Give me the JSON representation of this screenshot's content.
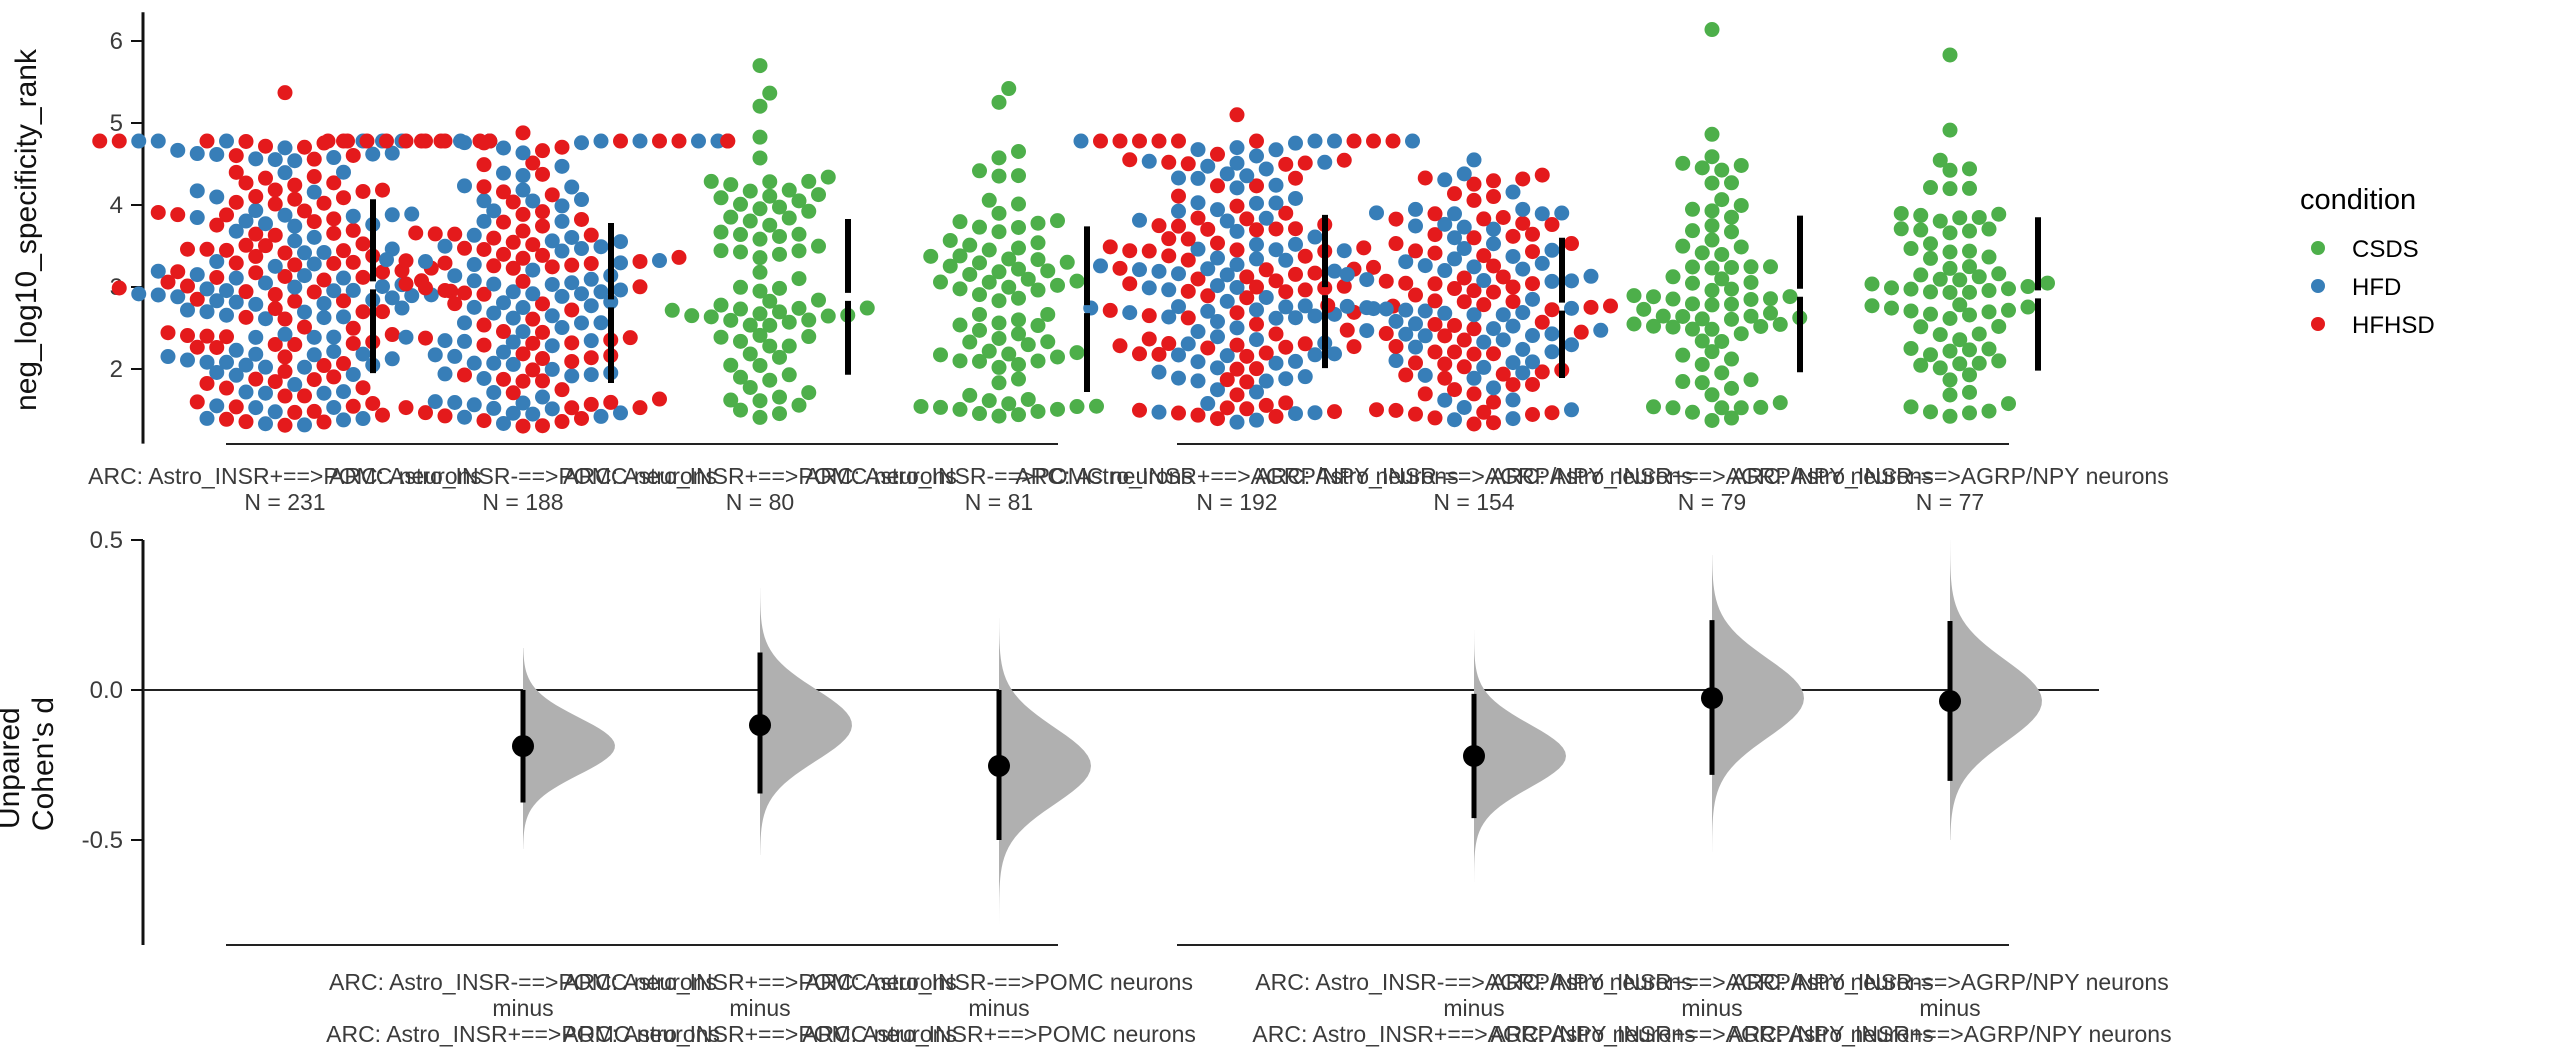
{
  "chart_data": [
    {
      "type": "scatter",
      "subtype": "swarm",
      "ylabel": "neg_log10_specificity_rank",
      "ylim": [
        1.09,
        6.35
      ],
      "yticks": [
        2,
        3,
        4,
        5,
        6
      ],
      "legend": {
        "title": "condition",
        "placement": "right",
        "entries": [
          {
            "name": "CSDS",
            "color": "#4daf4a"
          },
          {
            "name": "HFD",
            "color": "#377eb8"
          },
          {
            "name": "HFHSD",
            "color": "#e41a1c"
          }
        ]
      },
      "groups": [
        {
          "label": "ARC: Astro_INSR+==>POMC neurons",
          "n_label": "N = 231",
          "n": 231,
          "conditions": [
            "HFD",
            "HFHSD"
          ],
          "mean": 3.02,
          "sd_low": 1.95,
          "sd_high": 4.07,
          "min": 1.3,
          "max": 5.37,
          "ceiling": 4.78,
          "block": 0
        },
        {
          "label": "ARC: Astro_INSR-==>POMC neurons",
          "n_label": "N = 188",
          "n": 188,
          "conditions": [
            "HFD",
            "HFHSD"
          ],
          "mean": 2.8,
          "sd_low": 1.83,
          "sd_high": 3.78,
          "min": 1.3,
          "max": 4.88,
          "ceiling": 4.78,
          "block": 0
        },
        {
          "label": "ARC: Astro_INSR+==>POMC neurons",
          "n_label": "N = 80",
          "n": 80,
          "conditions": [
            "CSDS"
          ],
          "mean": 2.88,
          "sd_low": 1.93,
          "sd_high": 3.83,
          "min": 1.4,
          "max": 5.7,
          "block": 0
        },
        {
          "label": "ARC: Astro_INSR-==>POMC neurons",
          "n_label": "N = 81",
          "n": 81,
          "conditions": [
            "CSDS"
          ],
          "mean": 2.73,
          "sd_low": 1.72,
          "sd_high": 3.74,
          "min": 1.4,
          "max": 5.42,
          "block": 0
        },
        {
          "label": "ARC: Astro_INSR+==>AGRP/NPY neurons",
          "n_label": "N = 192",
          "n": 192,
          "conditions": [
            "HFD",
            "HFHSD"
          ],
          "mean": 2.95,
          "sd_low": 2.01,
          "sd_high": 3.88,
          "min": 1.35,
          "max": 5.1,
          "ceiling": 4.78,
          "block": 1
        },
        {
          "label": "ARC: Astro_INSR-==>AGRP/NPY neurons",
          "n_label": "N = 154",
          "n": 154,
          "conditions": [
            "HFD",
            "HFHSD"
          ],
          "mean": 2.76,
          "sd_low": 1.89,
          "sd_high": 3.6,
          "min": 1.3,
          "max": 4.55,
          "block": 1
        },
        {
          "label": "ARC: Astro_INSR+==>AGRP/NPY neurons",
          "n_label": "N = 79",
          "n": 79,
          "conditions": [
            "CSDS"
          ],
          "mean": 2.93,
          "sd_low": 1.96,
          "sd_high": 3.87,
          "min": 1.3,
          "max": 6.14,
          "block": 1
        },
        {
          "label": "ARC: Astro_INSR-==>AGRP/NPY neurons",
          "n_label": "N = 77",
          "n": 77,
          "conditions": [
            "CSDS"
          ],
          "mean": 2.91,
          "sd_low": 1.98,
          "sd_high": 3.85,
          "min": 1.35,
          "max": 5.83,
          "block": 1
        }
      ]
    },
    {
      "type": "scatter",
      "subtype": "effect-size",
      "ylabel": "Unpaired\nCohen's d",
      "ylabel_lines": [
        "Unpaired",
        "Cohen's d"
      ],
      "ylim": [
        -0.85,
        0.5
      ],
      "yticks": [
        0.5,
        0.0,
        -0.5
      ],
      "ytick_labels": [
        "0.5",
        "0.0",
        "-0.5"
      ],
      "zero_line": true,
      "comparisons": [
        {
          "group_index": 1,
          "test": "ARC: Astro_INSR-==>POMC neurons",
          "minus": "minus",
          "control": "ARC: Astro_INSR+==>POMC neurons",
          "d": -0.187,
          "ci": [
            -0.375,
            0.0
          ],
          "dist_range": [
            -0.53,
            0.14
          ]
        },
        {
          "group_index": 2,
          "test": "ARC: Astro_INSR+==>POMC neurons",
          "minus": "minus",
          "control": "ARC: Astro_INSR+==>POMC neurons",
          "d": -0.117,
          "ci": [
            -0.345,
            0.125
          ],
          "dist_range": [
            -0.55,
            0.34
          ]
        },
        {
          "group_index": 3,
          "test": "ARC: Astro_INSR-==>POMC neurons",
          "minus": "minus",
          "control": "ARC: Astro_INSR+==>POMC neurons",
          "d": -0.253,
          "ci": [
            -0.5,
            0.0
          ],
          "dist_range": [
            -0.78,
            0.24
          ]
        },
        {
          "group_index": 5,
          "test": "ARC: Astro_INSR-==>AGRP/NPY neurons",
          "minus": "minus",
          "control": "ARC: Astro_INSR+==>AGRP/NPY neurons",
          "d": -0.22,
          "ci": [
            -0.427,
            -0.013
          ],
          "dist_range": [
            -0.64,
            0.2
          ]
        },
        {
          "group_index": 6,
          "test": "ARC: Astro_INSR+==>AGRP/NPY neurons",
          "minus": "minus",
          "control": "ARC: Astro_INSR+==>AGRP/NPY neurons",
          "d": -0.027,
          "ci": [
            -0.283,
            0.233
          ],
          "dist_range": [
            -0.54,
            0.45
          ]
        },
        {
          "group_index": 7,
          "test": "ARC: Astro_INSR-==>AGRP/NPY neurons",
          "minus": "minus",
          "control": "ARC: Astro_INSR+==>AGRP/NPY neurons",
          "d": -0.037,
          "ci": [
            -0.303,
            0.23
          ],
          "dist_range": [
            -0.5,
            0.5
          ]
        }
      ]
    }
  ]
}
